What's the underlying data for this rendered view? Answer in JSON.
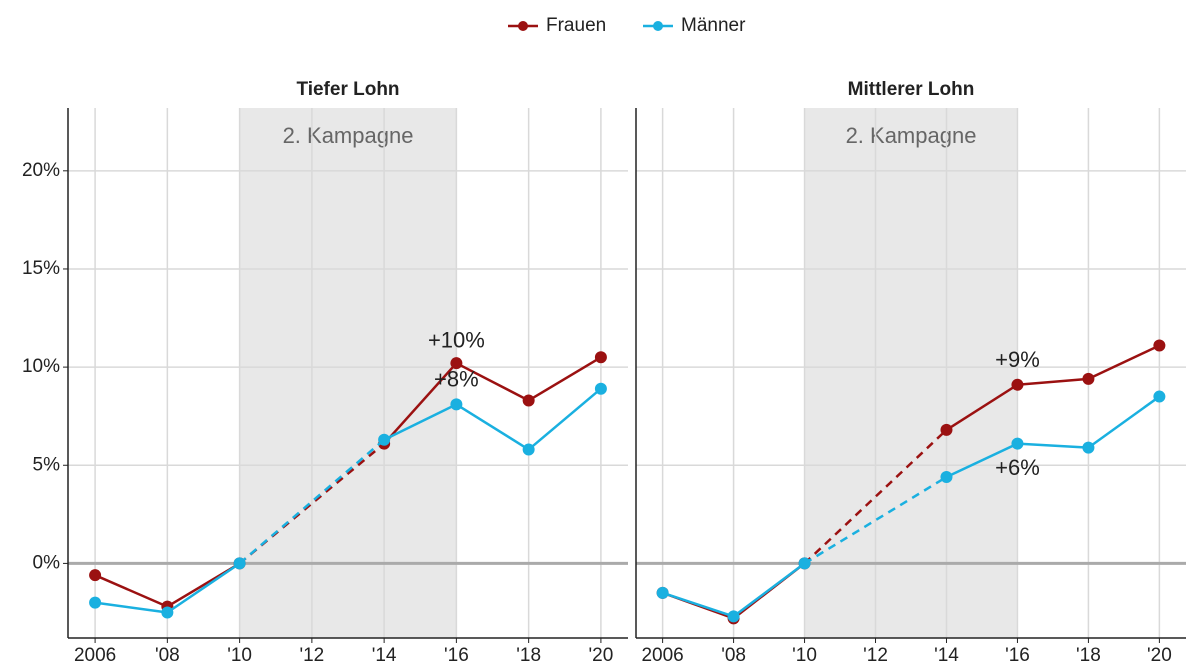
{
  "chart_data": [
    {
      "type": "line",
      "title": "Tiefer Lohn",
      "x": [
        2006,
        2008,
        2010,
        2014,
        2016,
        2018,
        2020
      ],
      "series": [
        {
          "name": "Frauen",
          "color": "#9b1111",
          "values": [
            -0.6,
            -2.2,
            0,
            6.1,
            10.2,
            8.3,
            10.5
          ]
        },
        {
          "name": "Männer",
          "color": "#1ab0e0",
          "values": [
            -2.0,
            -2.5,
            0,
            6.3,
            8.1,
            5.8,
            8.9
          ]
        }
      ],
      "dashed_segment": [
        2010,
        2014
      ],
      "shade": {
        "from": 2010,
        "to": 2016,
        "label": "2. Kampagne"
      },
      "annotations": [
        {
          "text": "+10%",
          "x": 2016,
          "y": 11.3
        },
        {
          "text": "+8%",
          "x": 2016,
          "y": 9.3
        }
      ],
      "xlim": [
        2005.25,
        2020.75
      ],
      "xticks": [
        2006,
        {
          "value": 2008,
          "label": "'08"
        },
        {
          "value": 2010,
          "label": "'10"
        },
        {
          "value": 2012,
          "label": "'12"
        },
        {
          "value": 2014,
          "label": "'14"
        },
        {
          "value": 2016,
          "label": "'16"
        },
        {
          "value": 2018,
          "label": "'18"
        },
        {
          "value": 2020,
          "label": "'20"
        }
      ],
      "ylim": [
        -3.8,
        23.2
      ],
      "yticks": [
        {
          "value": 0,
          "label": "0%"
        },
        {
          "value": 5,
          "label": "5%"
        },
        {
          "value": 10,
          "label": "10%"
        },
        {
          "value": 15,
          "label": "15%"
        },
        {
          "value": 20,
          "label": "20%"
        }
      ],
      "grid": true,
      "zero_line": true
    },
    {
      "type": "line",
      "title": "Mittlerer Lohn",
      "x": [
        2006,
        2008,
        2010,
        2014,
        2016,
        2018,
        2020
      ],
      "series": [
        {
          "color": "#9b1111",
          "values": [
            -1.5,
            -2.8,
            0,
            6.8,
            9.1,
            9.4,
            11.1
          ]
        },
        {
          "color": "#1ab0e0",
          "values": [
            -1.5,
            -2.7,
            0,
            4.4,
            6.1,
            5.9,
            8.5
          ]
        }
      ],
      "dashed_segment": [
        2010,
        2014
      ],
      "shade": {
        "from": 2010,
        "to": 2016,
        "label": "2. Kampagne"
      },
      "annotations": [
        {
          "text": "+9%",
          "x": 2016,
          "y": 10.3
        },
        {
          "text": "+6%",
          "x": 2016,
          "y": 4.8
        }
      ],
      "xlim": [
        2005.25,
        2020.75
      ],
      "xticks": [
        2006,
        {
          "value": 2008,
          "label": "'08"
        },
        {
          "value": 2010,
          "label": "'10"
        },
        {
          "value": 2012,
          "label": "'12"
        },
        {
          "value": 2014,
          "label": "'14"
        },
        {
          "value": 2016,
          "label": "'16"
        },
        {
          "value": 2018,
          "label": "'18"
        },
        {
          "value": 2020,
          "label": "'20"
        }
      ],
      "ylim": [
        -3.8,
        23.2
      ],
      "grid": true,
      "zero_line": true
    }
  ]
}
